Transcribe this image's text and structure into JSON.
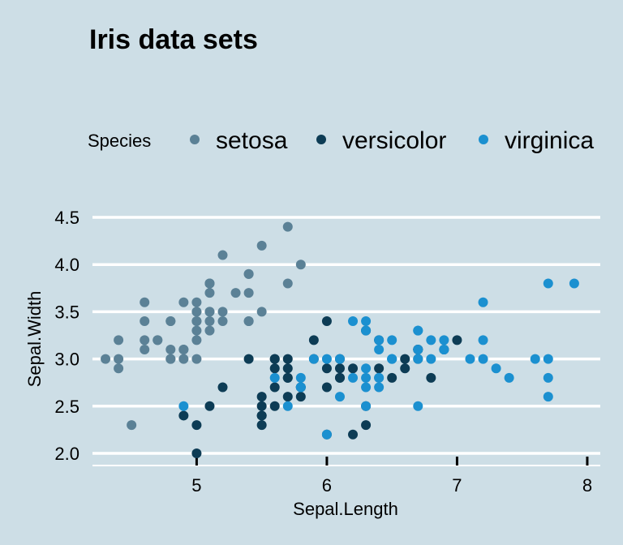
{
  "chart_data": {
    "type": "scatter",
    "title": "Iris data sets",
    "xlabel": "Sepal.Length",
    "ylabel": "Sepal.Width",
    "xlim": [
      4.2,
      8.1
    ],
    "ylim": [
      2.0,
      4.5
    ],
    "xticks": [
      5,
      6,
      7,
      8
    ],
    "yticks": [
      2.0,
      2.5,
      3.0,
      3.5,
      4.0,
      4.5
    ],
    "x_tick_labels": [
      "5",
      "6",
      "7",
      "8"
    ],
    "y_tick_labels": [
      "2.0",
      "2.5",
      "3.0",
      "3.5",
      "4.0",
      "4.5"
    ],
    "grid": "horizontal",
    "legend": {
      "title": "Species",
      "position": "top"
    },
    "series": [
      {
        "name": "setosa",
        "color": "#5b8196",
        "points": [
          [
            5.1,
            3.5
          ],
          [
            4.9,
            3.0
          ],
          [
            4.7,
            3.2
          ],
          [
            4.6,
            3.1
          ],
          [
            5.0,
            3.6
          ],
          [
            5.4,
            3.9
          ],
          [
            4.6,
            3.4
          ],
          [
            5.0,
            3.4
          ],
          [
            4.4,
            2.9
          ],
          [
            4.9,
            3.1
          ],
          [
            5.4,
            3.7
          ],
          [
            4.8,
            3.4
          ],
          [
            4.8,
            3.0
          ],
          [
            4.3,
            3.0
          ],
          [
            5.8,
            4.0
          ],
          [
            5.7,
            4.4
          ],
          [
            5.4,
            3.9
          ],
          [
            5.1,
            3.5
          ],
          [
            5.7,
            3.8
          ],
          [
            5.1,
            3.8
          ],
          [
            5.4,
            3.4
          ],
          [
            5.1,
            3.7
          ],
          [
            4.6,
            3.6
          ],
          [
            5.1,
            3.3
          ],
          [
            4.8,
            3.4
          ],
          [
            5.0,
            3.0
          ],
          [
            5.0,
            3.4
          ],
          [
            5.2,
            3.5
          ],
          [
            5.2,
            3.4
          ],
          [
            4.7,
            3.2
          ],
          [
            4.8,
            3.1
          ],
          [
            5.4,
            3.4
          ],
          [
            5.2,
            4.1
          ],
          [
            5.5,
            4.2
          ],
          [
            4.9,
            3.1
          ],
          [
            5.0,
            3.2
          ],
          [
            5.5,
            3.5
          ],
          [
            4.9,
            3.6
          ],
          [
            4.4,
            3.0
          ],
          [
            5.1,
            3.4
          ],
          [
            5.0,
            3.5
          ],
          [
            4.5,
            2.3
          ],
          [
            4.4,
            3.2
          ],
          [
            5.0,
            3.5
          ],
          [
            5.1,
            3.8
          ],
          [
            4.8,
            3.0
          ],
          [
            5.1,
            3.8
          ],
          [
            4.6,
            3.2
          ],
          [
            5.3,
            3.7
          ],
          [
            5.0,
            3.3
          ]
        ]
      },
      {
        "name": "versicolor",
        "color": "#0d3c55",
        "points": [
          [
            7.0,
            3.2
          ],
          [
            6.4,
            3.2
          ],
          [
            6.9,
            3.1
          ],
          [
            5.5,
            2.3
          ],
          [
            6.5,
            2.8
          ],
          [
            5.7,
            2.8
          ],
          [
            6.3,
            3.3
          ],
          [
            4.9,
            2.4
          ],
          [
            6.6,
            2.9
          ],
          [
            5.2,
            2.7
          ],
          [
            5.0,
            2.0
          ],
          [
            5.9,
            3.0
          ],
          [
            6.0,
            2.2
          ],
          [
            6.1,
            2.9
          ],
          [
            5.6,
            2.9
          ],
          [
            6.7,
            3.1
          ],
          [
            5.6,
            3.0
          ],
          [
            5.8,
            2.7
          ],
          [
            6.2,
            2.2
          ],
          [
            5.6,
            2.5
          ],
          [
            5.9,
            3.2
          ],
          [
            6.1,
            2.8
          ],
          [
            6.3,
            2.5
          ],
          [
            6.1,
            2.8
          ],
          [
            6.4,
            2.9
          ],
          [
            6.6,
            3.0
          ],
          [
            6.8,
            2.8
          ],
          [
            6.7,
            3.0
          ],
          [
            6.0,
            2.9
          ],
          [
            5.7,
            2.6
          ],
          [
            5.5,
            2.4
          ],
          [
            5.5,
            2.4
          ],
          [
            5.8,
            2.7
          ],
          [
            6.0,
            2.7
          ],
          [
            5.4,
            3.0
          ],
          [
            6.0,
            3.4
          ],
          [
            6.7,
            3.1
          ],
          [
            6.3,
            2.3
          ],
          [
            5.6,
            3.0
          ],
          [
            5.5,
            2.5
          ],
          [
            5.5,
            2.6
          ],
          [
            6.1,
            3.0
          ],
          [
            5.8,
            2.6
          ],
          [
            5.0,
            2.3
          ],
          [
            5.6,
            2.7
          ],
          [
            5.7,
            3.0
          ],
          [
            5.7,
            2.9
          ],
          [
            6.2,
            2.9
          ],
          [
            5.1,
            2.5
          ],
          [
            5.7,
            2.8
          ]
        ]
      },
      {
        "name": "virginica",
        "color": "#1b90d0",
        "points": [
          [
            6.3,
            3.3
          ],
          [
            5.8,
            2.7
          ],
          [
            7.1,
            3.0
          ],
          [
            6.3,
            2.9
          ],
          [
            6.5,
            3.0
          ],
          [
            7.6,
            3.0
          ],
          [
            4.9,
            2.5
          ],
          [
            7.3,
            2.9
          ],
          [
            6.7,
            2.5
          ],
          [
            7.2,
            3.6
          ],
          [
            6.5,
            3.2
          ],
          [
            6.4,
            2.7
          ],
          [
            6.8,
            3.0
          ],
          [
            5.7,
            2.5
          ],
          [
            5.8,
            2.8
          ],
          [
            6.4,
            3.2
          ],
          [
            6.5,
            3.0
          ],
          [
            7.7,
            3.8
          ],
          [
            7.7,
            2.6
          ],
          [
            6.0,
            2.2
          ],
          [
            6.9,
            3.2
          ],
          [
            5.6,
            2.8
          ],
          [
            7.7,
            2.8
          ],
          [
            6.3,
            2.7
          ],
          [
            6.7,
            3.3
          ],
          [
            7.2,
            3.2
          ],
          [
            6.2,
            2.8
          ],
          [
            6.1,
            3.0
          ],
          [
            6.4,
            2.8
          ],
          [
            7.2,
            3.0
          ],
          [
            7.4,
            2.8
          ],
          [
            7.9,
            3.8
          ],
          [
            6.4,
            2.8
          ],
          [
            6.3,
            2.8
          ],
          [
            6.1,
            2.6
          ],
          [
            7.7,
            3.0
          ],
          [
            6.3,
            3.4
          ],
          [
            6.4,
            3.1
          ],
          [
            6.0,
            3.0
          ],
          [
            6.9,
            3.1
          ],
          [
            6.7,
            3.1
          ],
          [
            6.9,
            3.1
          ],
          [
            5.8,
            2.7
          ],
          [
            6.8,
            3.2
          ],
          [
            6.7,
            3.3
          ],
          [
            6.7,
            3.0
          ],
          [
            6.3,
            2.5
          ],
          [
            6.5,
            3.0
          ],
          [
            6.2,
            3.4
          ],
          [
            5.9,
            3.0
          ]
        ]
      }
    ]
  }
}
